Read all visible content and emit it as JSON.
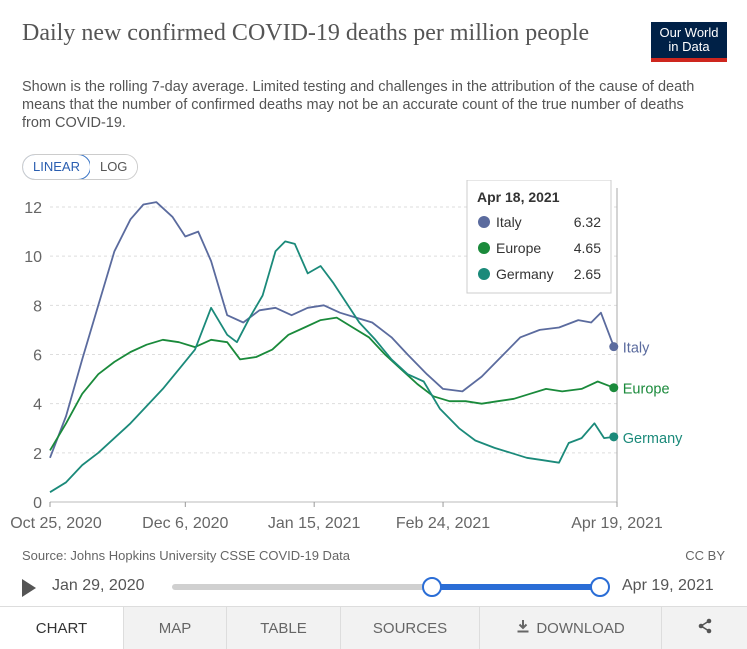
{
  "header": {
    "title": "Daily new confirmed COVID-19 deaths per million people",
    "subtitle": "Shown is the rolling 7-day average. Limited testing and challenges in the attribution of the cause of death means that the number of confirmed deaths may not be an accurate count of the true number of deaths from COVID-19.",
    "logo_line1": "Our World",
    "logo_line2": "in Data",
    "logo_colors": {
      "background": "#002147",
      "stripe": "#ce261e"
    }
  },
  "scale_toggle": {
    "linear": "LINEAR",
    "log": "LOG",
    "selected": "LINEAR"
  },
  "tooltip": {
    "date": "Apr 18, 2021",
    "rows": [
      {
        "name": "Italy",
        "value": "6.32",
        "color": "#5b6b9e"
      },
      {
        "name": "Europe",
        "value": "4.65",
        "color": "#1a8a3b"
      },
      {
        "name": "Germany",
        "value": "2.65",
        "color": "#1b8a7a"
      }
    ]
  },
  "chart_data": {
    "type": "line",
    "title": "Daily new confirmed COVID-19 deaths per million people",
    "ylim": [
      0,
      12
    ],
    "y_ticks": [
      0,
      2,
      4,
      6,
      8,
      10,
      12
    ],
    "x_tick_labels": [
      "Oct 25, 2020",
      "Dec 6, 2020",
      "Jan 15, 2021",
      "Feb 24, 2021",
      "Apr 19, 2021"
    ],
    "x_tick_dates": [
      "2020-10-25",
      "2020-12-06",
      "2021-01-15",
      "2021-02-24",
      "2021-04-19"
    ],
    "x_range": [
      "2020-10-25",
      "2021-04-19"
    ],
    "grid": "horizontal dashed",
    "legend": "line-end labels",
    "series": [
      {
        "name": "Italy",
        "color": "#5b6b9e",
        "x": [
          "2020-10-25",
          "2020-10-30",
          "2020-11-04",
          "2020-11-09",
          "2020-11-14",
          "2020-11-19",
          "2020-11-23",
          "2020-11-27",
          "2020-12-02",
          "2020-12-06",
          "2020-12-10",
          "2020-12-14",
          "2020-12-19",
          "2020-12-24",
          "2020-12-29",
          "2021-01-03",
          "2021-01-08",
          "2021-01-13",
          "2021-01-18",
          "2021-01-23",
          "2021-01-28",
          "2021-02-02",
          "2021-02-08",
          "2021-02-13",
          "2021-02-19",
          "2021-02-24",
          "2021-03-02",
          "2021-03-08",
          "2021-03-14",
          "2021-03-20",
          "2021-03-26",
          "2021-04-01",
          "2021-04-07",
          "2021-04-11",
          "2021-04-14",
          "2021-04-18"
        ],
        "y": [
          1.8,
          3.5,
          5.8,
          8.0,
          10.2,
          11.5,
          12.1,
          12.2,
          11.6,
          10.8,
          11.0,
          9.8,
          7.6,
          7.3,
          7.8,
          7.9,
          7.6,
          7.9,
          8.0,
          7.7,
          7.5,
          7.3,
          6.7,
          6.0,
          5.2,
          4.6,
          4.5,
          5.1,
          5.9,
          6.7,
          7.0,
          7.1,
          7.4,
          7.3,
          7.7,
          6.32
        ]
      },
      {
        "name": "Europe",
        "color": "#1a8a3b",
        "x": [
          "2020-10-25",
          "2020-10-30",
          "2020-11-04",
          "2020-11-09",
          "2020-11-14",
          "2020-11-19",
          "2020-11-24",
          "2020-11-29",
          "2020-12-04",
          "2020-12-09",
          "2020-12-14",
          "2020-12-19",
          "2020-12-23",
          "2020-12-28",
          "2021-01-02",
          "2021-01-07",
          "2021-01-12",
          "2021-01-17",
          "2021-01-22",
          "2021-01-27",
          "2021-02-01",
          "2021-02-06",
          "2021-02-11",
          "2021-02-16",
          "2021-02-21",
          "2021-02-26",
          "2021-03-03",
          "2021-03-08",
          "2021-03-13",
          "2021-03-18",
          "2021-03-23",
          "2021-03-28",
          "2021-04-02",
          "2021-04-08",
          "2021-04-13",
          "2021-04-18"
        ],
        "y": [
          2.1,
          3.2,
          4.4,
          5.2,
          5.7,
          6.1,
          6.4,
          6.6,
          6.5,
          6.3,
          6.6,
          6.5,
          5.8,
          5.9,
          6.2,
          6.8,
          7.1,
          7.4,
          7.5,
          7.1,
          6.7,
          6.0,
          5.4,
          4.8,
          4.3,
          4.1,
          4.1,
          4.0,
          4.1,
          4.2,
          4.4,
          4.6,
          4.5,
          4.6,
          4.9,
          4.65
        ]
      },
      {
        "name": "Germany",
        "color": "#1b8a7a",
        "x": [
          "2020-10-25",
          "2020-10-30",
          "2020-11-04",
          "2020-11-09",
          "2020-11-14",
          "2020-11-19",
          "2020-11-24",
          "2020-11-29",
          "2020-12-04",
          "2020-12-09",
          "2020-12-14",
          "2020-12-19",
          "2020-12-22",
          "2020-12-26",
          "2020-12-30",
          "2021-01-03",
          "2021-01-06",
          "2021-01-09",
          "2021-01-13",
          "2021-01-17",
          "2021-01-21",
          "2021-01-25",
          "2021-01-29",
          "2021-02-03",
          "2021-02-08",
          "2021-02-13",
          "2021-02-18",
          "2021-02-23",
          "2021-03-01",
          "2021-03-06",
          "2021-03-12",
          "2021-03-17",
          "2021-03-22",
          "2021-03-27",
          "2021-04-01",
          "2021-04-04",
          "2021-04-08",
          "2021-04-12",
          "2021-04-15",
          "2021-04-18"
        ],
        "y": [
          0.4,
          0.8,
          1.5,
          2.0,
          2.6,
          3.2,
          3.9,
          4.6,
          5.4,
          6.2,
          7.9,
          6.8,
          6.5,
          7.5,
          8.4,
          10.2,
          10.6,
          10.5,
          9.3,
          9.6,
          8.9,
          8.1,
          7.3,
          6.6,
          5.8,
          5.2,
          4.9,
          3.8,
          3.0,
          2.5,
          2.2,
          2.0,
          1.8,
          1.7,
          1.6,
          2.4,
          2.6,
          3.2,
          2.6,
          2.65
        ]
      }
    ]
  },
  "footer": {
    "source": "Source: Johns Hopkins University CSSE COVID-19 Data",
    "license": "CC BY"
  },
  "timeline": {
    "start_label": "Jan 29, 2020",
    "end_label": "Apr 19, 2021"
  },
  "tabs": [
    {
      "label": "CHART",
      "active": true
    },
    {
      "label": "MAP"
    },
    {
      "label": "TABLE"
    },
    {
      "label": "SOURCES"
    },
    {
      "label": "DOWNLOAD",
      "icon": "download-icon"
    },
    {
      "label": "",
      "icon": "share-icon"
    }
  ]
}
